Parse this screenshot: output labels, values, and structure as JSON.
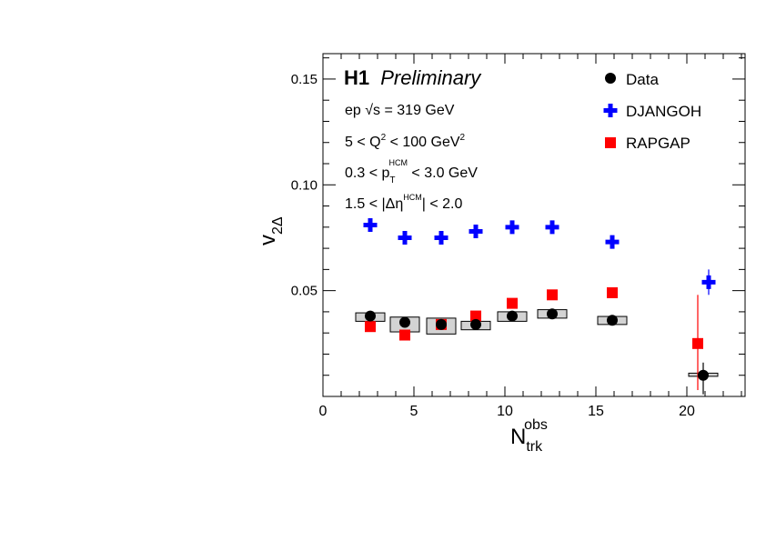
{
  "chart_data": {
    "type": "scatter",
    "title_bold": "H1",
    "title_italic": "Preliminary",
    "xlabel": "N",
    "xlabel_sub": "trk",
    "xlabel_sup": "obs",
    "ylabel": "v",
    "ylabel_sub": "2Δ",
    "xlim": [
      0,
      23.2
    ],
    "ylim": [
      0.0,
      0.162
    ],
    "x_ticks": [
      0,
      5,
      10,
      15,
      20
    ],
    "x_tick_labels": [
      "0",
      "5",
      "10",
      "15",
      "20"
    ],
    "y_ticks": [
      0.05,
      0.1,
      0.15
    ],
    "y_tick_labels": [
      "0.05",
      "0.10",
      "0.15"
    ],
    "legend_position": "top-right",
    "annotations": {
      "line1_pre": "ep ",
      "line1_sqrt": "√s",
      "line1_post": " = 319 GeV",
      "line2_pre": "5 < Q",
      "line2_sup1": "2",
      "line2_mid": " < 100 GeV",
      "line2_sup2": "2",
      "line3_pre": "0.3 < p",
      "line3_sub": "T",
      "line3_sup": "HCM",
      "line3_post": " < 3.0 GeV",
      "line4_pre": "1.5 < |Δη",
      "line4_sup": "HCM",
      "line4_post": "| < 2.0"
    },
    "series": [
      {
        "name": "Data",
        "marker": "circle",
        "color": "#000000",
        "x": [
          2.6,
          4.5,
          6.5,
          8.4,
          10.4,
          12.6,
          15.9,
          20.9
        ],
        "y": [
          0.038,
          0.035,
          0.034,
          0.034,
          0.038,
          0.039,
          0.036,
          0.01
        ],
        "syst_box": [
          {
            "x0": 1.8,
            "x1": 3.4,
            "y0": 0.0355,
            "y1": 0.0395
          },
          {
            "x0": 3.7,
            "x1": 5.3,
            "y0": 0.0305,
            "y1": 0.0375
          },
          {
            "x0": 5.7,
            "x1": 7.3,
            "y0": 0.0295,
            "y1": 0.037
          },
          {
            "x0": 7.6,
            "x1": 9.2,
            "y0": 0.0315,
            "y1": 0.0355
          },
          {
            "x0": 9.6,
            "x1": 11.2,
            "y0": 0.0355,
            "y1": 0.04
          },
          {
            "x0": 11.8,
            "x1": 13.4,
            "y0": 0.037,
            "y1": 0.041
          },
          {
            "x0": 15.1,
            "x1": 16.7,
            "y0": 0.034,
            "y1": 0.0378
          },
          {
            "x0": 20.1,
            "x1": 21.7,
            "y0": 0.0095,
            "y1": 0.011
          }
        ],
        "err_low": [
          0,
          0,
          0,
          0,
          0,
          0,
          0,
          0.009
        ],
        "err_high": [
          0,
          0,
          0,
          0,
          0,
          0,
          0,
          0.006
        ]
      },
      {
        "name": "DJANGOH",
        "marker": "cross",
        "color": "#0000ff",
        "x": [
          2.6,
          4.5,
          6.5,
          8.4,
          10.4,
          12.6,
          15.9,
          21.2
        ],
        "y": [
          0.081,
          0.075,
          0.075,
          0.078,
          0.08,
          0.08,
          0.073,
          0.054
        ],
        "err_low": [
          0,
          0,
          0,
          0,
          0,
          0,
          0,
          0.006
        ],
        "err_high": [
          0,
          0,
          0,
          0,
          0,
          0,
          0,
          0.006
        ]
      },
      {
        "name": "RAPGAP",
        "marker": "square",
        "color": "#ff0000",
        "x": [
          2.6,
          4.5,
          6.5,
          8.4,
          10.4,
          12.6,
          15.9,
          20.6
        ],
        "y": [
          0.033,
          0.029,
          0.034,
          0.038,
          0.044,
          0.048,
          0.049,
          0.025
        ],
        "err_low": [
          0,
          0,
          0,
          0,
          0,
          0,
          0,
          0.022
        ],
        "err_high": [
          0,
          0,
          0,
          0,
          0,
          0,
          0,
          0.023
        ]
      }
    ]
  }
}
